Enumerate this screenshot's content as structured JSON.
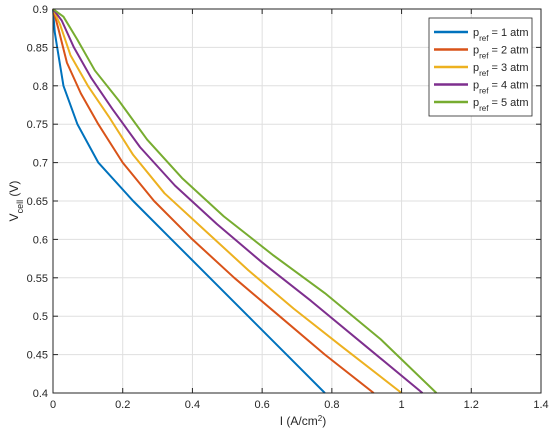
{
  "chart_data": {
    "type": "line",
    "xlabel": "I (A/cm²)",
    "xlabel_main": "I (A/cm",
    "xlabel_sup": "2",
    "xlabel_end": ")",
    "ylabel_main": "V",
    "ylabel_sub": "cell",
    "ylabel_end": " (V)",
    "xlim": [
      0,
      1.4
    ],
    "ylim": [
      0.4,
      0.9
    ],
    "xticks": [
      0,
      0.2,
      0.4,
      0.6,
      0.8,
      1,
      1.2,
      1.4
    ],
    "yticks": [
      0.4,
      0.45,
      0.5,
      0.55,
      0.6,
      0.65,
      0.7,
      0.75,
      0.8,
      0.85,
      0.9
    ],
    "xtick_labels": [
      "0",
      "0.2",
      "0.4",
      "0.6",
      "0.8",
      "1",
      "1.2",
      "1.4"
    ],
    "ytick_labels": [
      "0.4",
      "0.45",
      "0.5",
      "0.55",
      "0.6",
      "0.65",
      "0.7",
      "0.75",
      "0.8",
      "0.85",
      "0.9"
    ],
    "grid": true,
    "legend_position": "top-right",
    "series": [
      {
        "name": "p_ref = 1 atm",
        "legend_main": "p",
        "legend_sub": "ref",
        "legend_rest": " = 1 atm",
        "color": "#0072BD",
        "points": [
          [
            0.0,
            0.9
          ],
          [
            0.005,
            0.87
          ],
          [
            0.012,
            0.85
          ],
          [
            0.03,
            0.8
          ],
          [
            0.07,
            0.75
          ],
          [
            0.13,
            0.7
          ],
          [
            0.23,
            0.65
          ],
          [
            0.34,
            0.6
          ],
          [
            0.45,
            0.55
          ],
          [
            0.56,
            0.5
          ],
          [
            0.67,
            0.45
          ],
          [
            0.78,
            0.4
          ]
        ]
      },
      {
        "name": "p_ref = 2 atm",
        "legend_main": "p",
        "legend_sub": "ref",
        "legend_rest": " = 2 atm",
        "color": "#D95319",
        "points": [
          [
            0.0,
            0.9
          ],
          [
            0.015,
            0.875
          ],
          [
            0.04,
            0.83
          ],
          [
            0.08,
            0.79
          ],
          [
            0.13,
            0.75
          ],
          [
            0.2,
            0.7
          ],
          [
            0.29,
            0.65
          ],
          [
            0.4,
            0.6
          ],
          [
            0.52,
            0.55
          ],
          [
            0.65,
            0.5
          ],
          [
            0.78,
            0.45
          ],
          [
            0.92,
            0.4
          ]
        ]
      },
      {
        "name": "p_ref = 3 atm",
        "legend_main": "p",
        "legend_sub": "ref",
        "legend_rest": " = 3 atm",
        "color": "#EDB120",
        "points": [
          [
            0.0,
            0.9
          ],
          [
            0.02,
            0.88
          ],
          [
            0.05,
            0.84
          ],
          [
            0.1,
            0.8
          ],
          [
            0.16,
            0.76
          ],
          [
            0.23,
            0.71
          ],
          [
            0.32,
            0.66
          ],
          [
            0.44,
            0.61
          ],
          [
            0.56,
            0.56
          ],
          [
            0.69,
            0.51
          ],
          [
            0.83,
            0.46
          ],
          [
            1.0,
            0.4
          ]
        ]
      },
      {
        "name": "p_ref = 4 atm",
        "legend_main": "p",
        "legend_sub": "ref",
        "legend_rest": " = 4 atm",
        "color": "#7E2F8E",
        "points": [
          [
            0.0,
            0.9
          ],
          [
            0.025,
            0.885
          ],
          [
            0.06,
            0.85
          ],
          [
            0.11,
            0.81
          ],
          [
            0.17,
            0.77
          ],
          [
            0.25,
            0.72
          ],
          [
            0.35,
            0.67
          ],
          [
            0.47,
            0.62
          ],
          [
            0.6,
            0.57
          ],
          [
            0.74,
            0.52
          ],
          [
            0.9,
            0.46
          ],
          [
            1.06,
            0.4
          ]
        ]
      },
      {
        "name": "p_ref = 5 atm",
        "legend_main": "p",
        "legend_sub": "ref",
        "legend_rest": " = 5 atm",
        "color": "#77AC30",
        "points": [
          [
            0.0,
            0.9
          ],
          [
            0.03,
            0.89
          ],
          [
            0.07,
            0.86
          ],
          [
            0.12,
            0.82
          ],
          [
            0.19,
            0.78
          ],
          [
            0.27,
            0.73
          ],
          [
            0.37,
            0.68
          ],
          [
            0.49,
            0.63
          ],
          [
            0.63,
            0.58
          ],
          [
            0.78,
            0.53
          ],
          [
            0.94,
            0.47
          ],
          [
            1.1,
            0.4
          ]
        ]
      }
    ]
  }
}
